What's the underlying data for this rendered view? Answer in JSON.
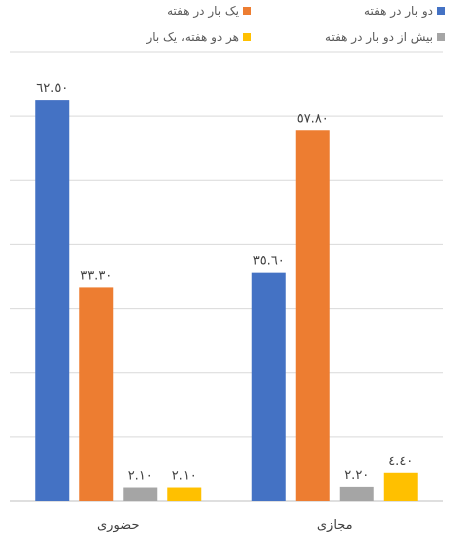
{
  "chart_data": {
    "type": "bar",
    "categories": [
      "حضوری",
      "مجازی"
    ],
    "series": [
      {
        "name": "دو بار در هفته",
        "color": "#4472C4",
        "values": [
          62.5,
          35.6
        ],
        "labels": [
          "٦٢.٥٠",
          "٣٥.٦٠"
        ]
      },
      {
        "name": "یک بار در هفته",
        "color": "#ED7D31",
        "values": [
          33.3,
          57.8
        ],
        "labels": [
          "٣٣.٣٠",
          "٥٧.٨٠"
        ]
      },
      {
        "name": "بیش از دو بار در هفته",
        "color": "#A5A5A5",
        "values": [
          2.1,
          2.2
        ],
        "labels": [
          "٢.١٠",
          "٢.٢٠"
        ]
      },
      {
        "name": "هر دو هفته، یک بار",
        "color": "#FFC000",
        "values": [
          2.1,
          4.4
        ],
        "labels": [
          "٢.١٠",
          "٤.٤٠"
        ]
      }
    ],
    "ylim": [
      0,
      70
    ],
    "gridlines": true,
    "legend": "top"
  }
}
